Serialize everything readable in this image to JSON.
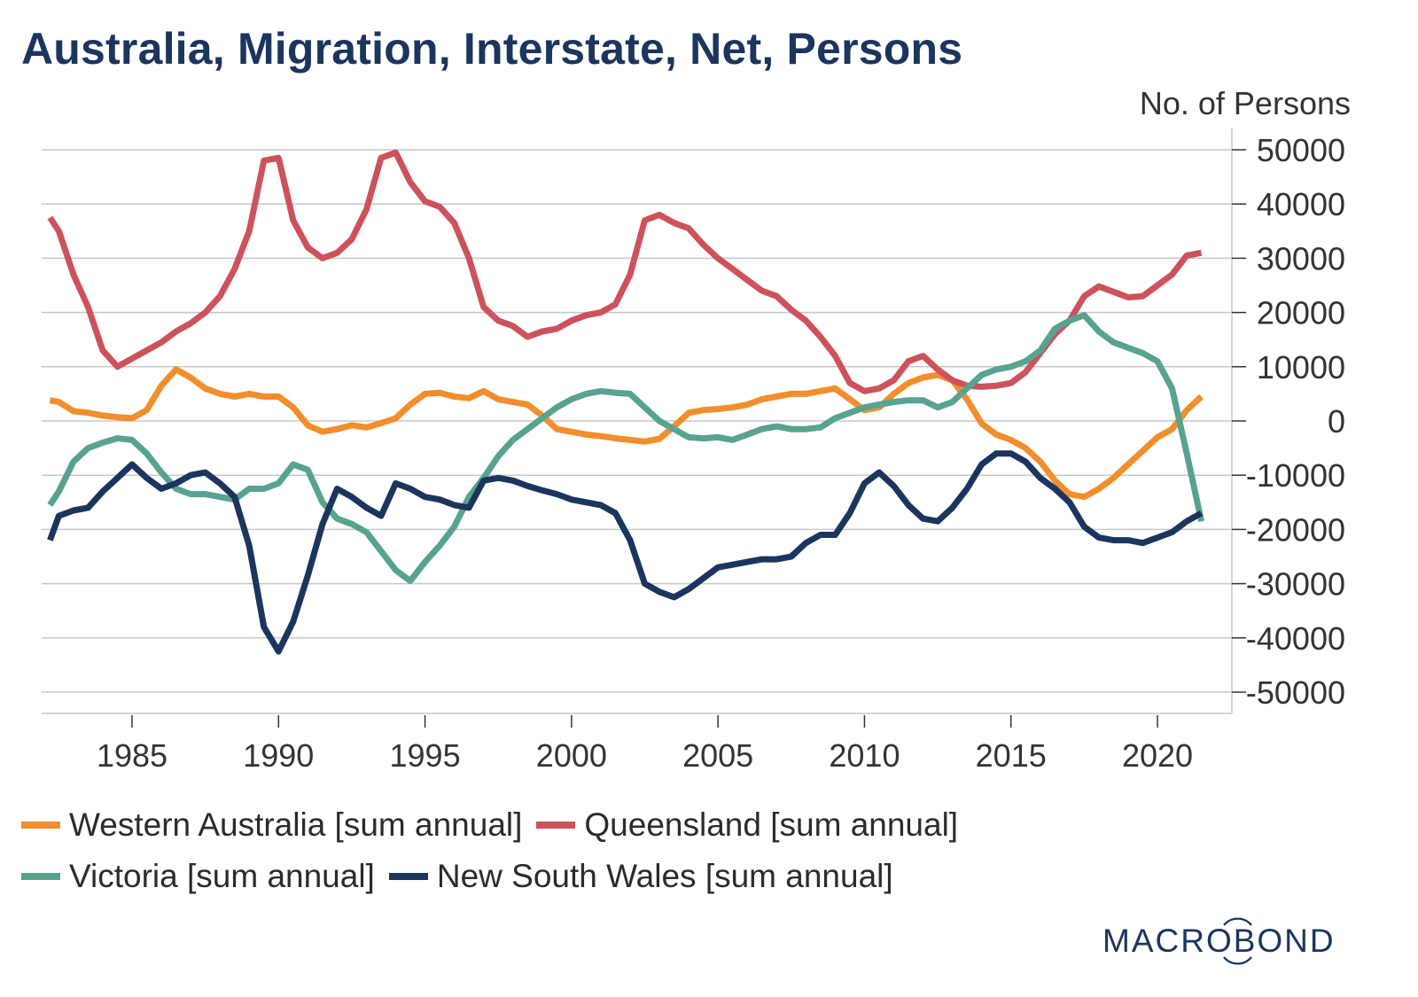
{
  "header": {
    "title": "Australia, Migration, Interstate, Net, Persons",
    "unit_label": "No. of Persons"
  },
  "legend": {
    "items": [
      {
        "label": "Western Australia [sum annual]",
        "color": "#f28e2b"
      },
      {
        "label": "Queensland [sum annual]",
        "color": "#cd525c"
      },
      {
        "label": "Victoria [sum annual]",
        "color": "#57a390"
      },
      {
        "label": "New South Wales [sum annual]",
        "color": "#1b355e"
      }
    ]
  },
  "branding": {
    "logo_text": "MACROBOND",
    "logo_color": "#1b355e"
  },
  "chart_data": {
    "type": "line",
    "title": "Australia, Migration, Interstate, Net, Persons",
    "xlabel": "",
    "ylabel": "No. of Persons",
    "xlim": [
      1981.7,
      1922.3
    ],
    "ylim": [
      -54000,
      54000
    ],
    "x_ticks": [
      1985,
      1990,
      1995,
      2000,
      2005,
      2010,
      2015,
      2020
    ],
    "x_tick_labels": [
      "1985",
      "1990",
      "1995",
      "2000",
      "2005",
      "2010",
      "2015",
      "2020"
    ],
    "y_ticks": [
      50000,
      40000,
      30000,
      20000,
      10000,
      0,
      -10000,
      -20000,
      -30000,
      -40000,
      -50000
    ],
    "y_tick_labels": [
      "50000",
      "40000",
      "30000",
      "20000",
      "10000",
      "0",
      "-10000",
      "-20000",
      "-30000",
      "-40000",
      "-50000"
    ],
    "y_axis_side": "right",
    "grid": true,
    "legend_position": "bottom",
    "series": [
      {
        "name": "Western Australia [sum annual]",
        "color": "#f28e2b",
        "x": [
          1982.2,
          1982.5,
          1983.0,
          1983.5,
          1984.0,
          1984.5,
          1985.0,
          1985.5,
          1986.0,
          1986.5,
          1987.0,
          1987.5,
          1988.0,
          1988.5,
          1989.0,
          1989.5,
          1990.0,
          1990.5,
          1991.0,
          1991.5,
          1992.0,
          1992.5,
          1993.0,
          1993.5,
          1994.0,
          1994.5,
          1995.0,
          1995.5,
          1996.0,
          1996.5,
          1997.0,
          1997.5,
          1998.0,
          1998.5,
          1999.0,
          1999.5,
          2000.0,
          2000.5,
          2001.0,
          2001.5,
          2002.0,
          2002.5,
          2003.0,
          2003.5,
          2004.0,
          2004.5,
          2005.0,
          2005.5,
          2006.0,
          2006.5,
          2007.0,
          2007.5,
          2008.0,
          2008.5,
          2009.0,
          2009.5,
          2010.0,
          2010.5,
          2011.0,
          2011.5,
          2012.0,
          2012.5,
          2013.0,
          2013.5,
          2014.0,
          2014.5,
          2015.0,
          2015.5,
          2016.0,
          2016.5,
          2017.0,
          2017.5,
          2018.0,
          2018.5,
          2019.0,
          2019.5,
          2020.0,
          2020.5,
          2021.0,
          2021.5
        ],
        "values": [
          3800,
          3500,
          1800,
          1500,
          1000,
          700,
          500,
          2000,
          6500,
          9500,
          8000,
          6000,
          5000,
          4500,
          5000,
          4500,
          4500,
          2500,
          -800,
          -2000,
          -1500,
          -800,
          -1200,
          -400,
          500,
          3000,
          5000,
          5200,
          4500,
          4200,
          5500,
          4000,
          3500,
          3000,
          1000,
          -1500,
          -2000,
          -2500,
          -2800,
          -3200,
          -3500,
          -3800,
          -3300,
          -1000,
          1500,
          2000,
          2200,
          2500,
          3000,
          4000,
          4500,
          5000,
          5000,
          5500,
          6000,
          4000,
          2000,
          2500,
          5000,
          7000,
          8000,
          8500,
          7500,
          4000,
          -500,
          -2500,
          -3500,
          -5000,
          -7500,
          -11000,
          -13500,
          -14000,
          -12500,
          -10500,
          -8000,
          -5500,
          -3000,
          -1500,
          2000,
          4500
        ]
      },
      {
        "name": "Queensland [sum annual]",
        "color": "#cd525c",
        "x": [
          1982.2,
          1982.5,
          1983.0,
          1983.5,
          1984.0,
          1984.5,
          1985.0,
          1985.5,
          1986.0,
          1986.5,
          1987.0,
          1987.5,
          1988.0,
          1988.5,
          1989.0,
          1989.5,
          1990.0,
          1990.5,
          1991.0,
          1991.5,
          1992.0,
          1992.5,
          1993.0,
          1993.5,
          1994.0,
          1994.5,
          1995.0,
          1995.5,
          1996.0,
          1996.5,
          1997.0,
          1997.5,
          1998.0,
          1998.5,
          1999.0,
          1999.5,
          2000.0,
          2000.5,
          2001.0,
          2001.5,
          2002.0,
          2002.5,
          2003.0,
          2003.5,
          2004.0,
          2004.5,
          2005.0,
          2005.5,
          2006.0,
          2006.5,
          2007.0,
          2007.5,
          2008.0,
          2008.5,
          2009.0,
          2009.5,
          2010.0,
          2010.5,
          2011.0,
          2011.5,
          2012.0,
          2012.5,
          2013.0,
          2013.5,
          2014.0,
          2014.5,
          2015.0,
          2015.5,
          2016.0,
          2016.5,
          2017.0,
          2017.5,
          2018.0,
          2018.5,
          2019.0,
          2019.5,
          2020.0,
          2020.5,
          2021.0,
          2021.5
        ],
        "values": [
          37500,
          35000,
          27000,
          21000,
          13000,
          10000,
          11500,
          13000,
          14500,
          16500,
          18000,
          20000,
          23000,
          28000,
          35000,
          48000,
          48500,
          37000,
          32000,
          30000,
          31000,
          33500,
          39000,
          48500,
          49500,
          44000,
          40500,
          39500,
          36500,
          30000,
          21000,
          18500,
          17500,
          15500,
          16500,
          17000,
          18500,
          19500,
          20000,
          21500,
          27000,
          37000,
          38000,
          36500,
          35500,
          32500,
          30000,
          28000,
          26000,
          24000,
          23000,
          20500,
          18500,
          15500,
          12000,
          7000,
          5500,
          6000,
          7500,
          11000,
          12000,
          9500,
          7500,
          6500,
          6300,
          6500,
          7000,
          9000,
          12500,
          16000,
          18500,
          23000,
          24800,
          23800,
          22800,
          23000,
          25000,
          27000,
          30500,
          31000
        ]
      },
      {
        "name": "Victoria [sum annual]",
        "color": "#57a390",
        "x": [
          1982.2,
          1982.5,
          1983.0,
          1983.5,
          1984.0,
          1984.5,
          1985.0,
          1985.5,
          1986.0,
          1986.5,
          1987.0,
          1987.5,
          1988.0,
          1988.5,
          1989.0,
          1989.5,
          1990.0,
          1990.5,
          1991.0,
          1991.5,
          1992.0,
          1992.5,
          1993.0,
          1993.5,
          1994.0,
          1994.5,
          1995.0,
          1995.5,
          1996.0,
          1996.5,
          1997.0,
          1997.5,
          1998.0,
          1998.5,
          1999.0,
          1999.5,
          2000.0,
          2000.5,
          2001.0,
          2001.5,
          2002.0,
          2002.5,
          2003.0,
          2003.5,
          2004.0,
          2004.5,
          2005.0,
          2005.5,
          2006.0,
          2006.5,
          2007.0,
          2007.5,
          2008.0,
          2008.5,
          2009.0,
          2009.5,
          2010.0,
          2010.5,
          2011.0,
          2011.5,
          2012.0,
          2012.5,
          2013.0,
          2013.5,
          2014.0,
          2014.5,
          2015.0,
          2015.5,
          2016.0,
          2016.5,
          2017.0,
          2017.5,
          2018.0,
          2018.5,
          2019.0,
          2019.5,
          2020.0,
          2020.5,
          2021.0,
          2021.5
        ],
        "values": [
          -15500,
          -13000,
          -7500,
          -5000,
          -4000,
          -3200,
          -3500,
          -6000,
          -9500,
          -12500,
          -13500,
          -13500,
          -14000,
          -14500,
          -12500,
          -12500,
          -11500,
          -8000,
          -9000,
          -15000,
          -18000,
          -19000,
          -20500,
          -24000,
          -27500,
          -29500,
          -26000,
          -23000,
          -19500,
          -14000,
          -10500,
          -6500,
          -3500,
          -1500,
          500,
          2500,
          4000,
          5000,
          5500,
          5200,
          5000,
          2500,
          0,
          -1500,
          -3000,
          -3200,
          -3000,
          -3500,
          -2500,
          -1500,
          -1000,
          -1500,
          -1500,
          -1200,
          500,
          1500,
          2500,
          3000,
          3500,
          3800,
          3800,
          2500,
          3500,
          6000,
          8500,
          9500,
          10000,
          11000,
          13000,
          17000,
          18500,
          19500,
          16500,
          14500,
          13500,
          12500,
          11000,
          6000,
          -6000,
          -18500
        ]
      },
      {
        "name": "New South Wales [sum annual]",
        "color": "#1b355e",
        "x": [
          1982.2,
          1982.5,
          1983.0,
          1983.5,
          1984.0,
          1984.5,
          1985.0,
          1985.5,
          1986.0,
          1986.5,
          1987.0,
          1987.5,
          1988.0,
          1988.5,
          1989.0,
          1989.5,
          1990.0,
          1990.5,
          1991.0,
          1991.5,
          1992.0,
          1992.5,
          1993.0,
          1993.5,
          1994.0,
          1994.5,
          1995.0,
          1995.5,
          1996.0,
          1996.5,
          1997.0,
          1997.5,
          1998.0,
          1998.5,
          1999.0,
          1999.5,
          2000.0,
          2000.5,
          2001.0,
          2001.5,
          2002.0,
          2002.5,
          2003.0,
          2003.5,
          2004.0,
          2004.5,
          2005.0,
          2005.5,
          2006.0,
          2006.5,
          2007.0,
          2007.5,
          2008.0,
          2008.5,
          2009.0,
          2009.5,
          2010.0,
          2010.5,
          2011.0,
          2011.5,
          2012.0,
          2012.5,
          2013.0,
          2013.5,
          2014.0,
          2014.5,
          2015.0,
          2015.5,
          2016.0,
          2016.5,
          2017.0,
          2017.5,
          2018.0,
          2018.5,
          2019.0,
          2019.5,
          2020.0,
          2020.5,
          2021.0,
          2021.5
        ],
        "values": [
          -22000,
          -17500,
          -16500,
          -16000,
          -13000,
          -10500,
          -8000,
          -10500,
          -12500,
          -11500,
          -10000,
          -9500,
          -11500,
          -14000,
          -23000,
          -38000,
          -42500,
          -37000,
          -28500,
          -19000,
          -12500,
          -14000,
          -16000,
          -17500,
          -11500,
          -12500,
          -14000,
          -14500,
          -15500,
          -16000,
          -11000,
          -10500,
          -11000,
          -12000,
          -12800,
          -13500,
          -14500,
          -15000,
          -15500,
          -17000,
          -22000,
          -30000,
          -31500,
          -32500,
          -31000,
          -29000,
          -27000,
          -26500,
          -26000,
          -25500,
          -25500,
          -25000,
          -22500,
          -21000,
          -21000,
          -17000,
          -11500,
          -9500,
          -12000,
          -15500,
          -18000,
          -18500,
          -16000,
          -12500,
          -8000,
          -6000,
          -6000,
          -7500,
          -10500,
          -12500,
          -15000,
          -19500,
          -21500,
          -22000,
          -22000,
          -22500,
          -21500,
          -20500,
          -18500,
          -17000
        ]
      }
    ]
  }
}
